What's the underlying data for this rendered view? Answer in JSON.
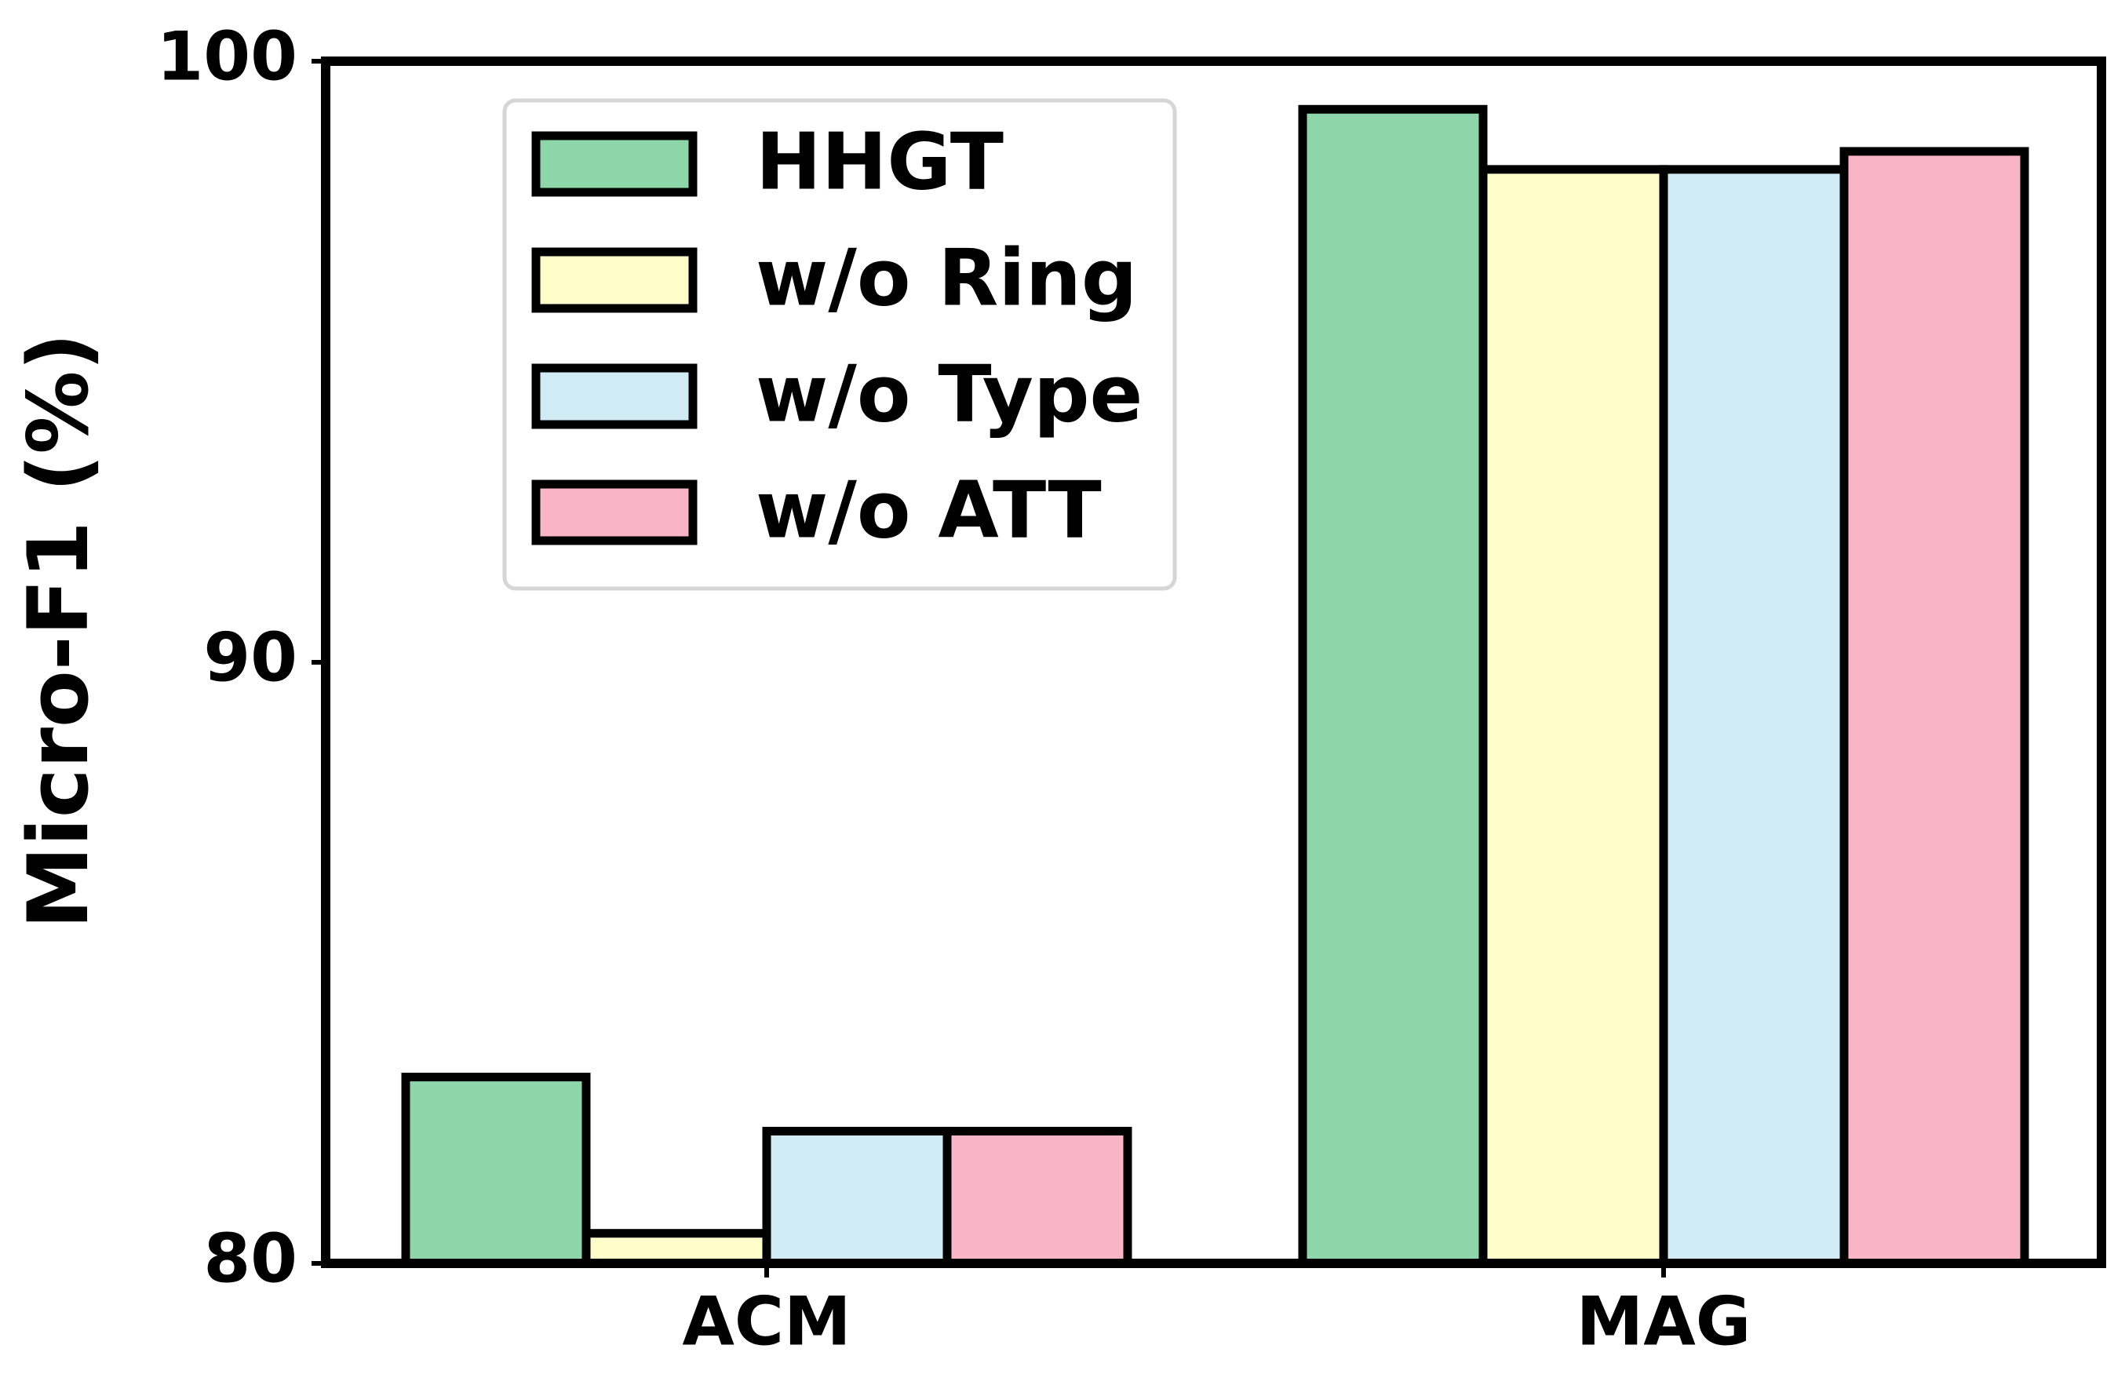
{
  "chart_data": {
    "type": "bar",
    "title": "",
    "xlabel": "",
    "ylabel": "Micro-F1 (%)",
    "categories": [
      "ACM",
      "MAG"
    ],
    "ylim": [
      80,
      100
    ],
    "yticks": [
      80,
      90,
      100
    ],
    "grid": false,
    "legend_position": "top-left",
    "series": [
      {
        "name": "HHGT",
        "color": "#8dd6a9",
        "values": [
          83.1,
          99.2
        ]
      },
      {
        "name": "w/o Ring",
        "color": "#fffdca",
        "values": [
          80.5,
          98.2
        ]
      },
      {
        "name": "w/o Type",
        "color": "#d0ebf3",
        "values": [
          82.2,
          98.2
        ]
      },
      {
        "name": "w/o ATT",
        "color": "#f9b5c6",
        "values": [
          82.2,
          98.5
        ]
      }
    ]
  }
}
